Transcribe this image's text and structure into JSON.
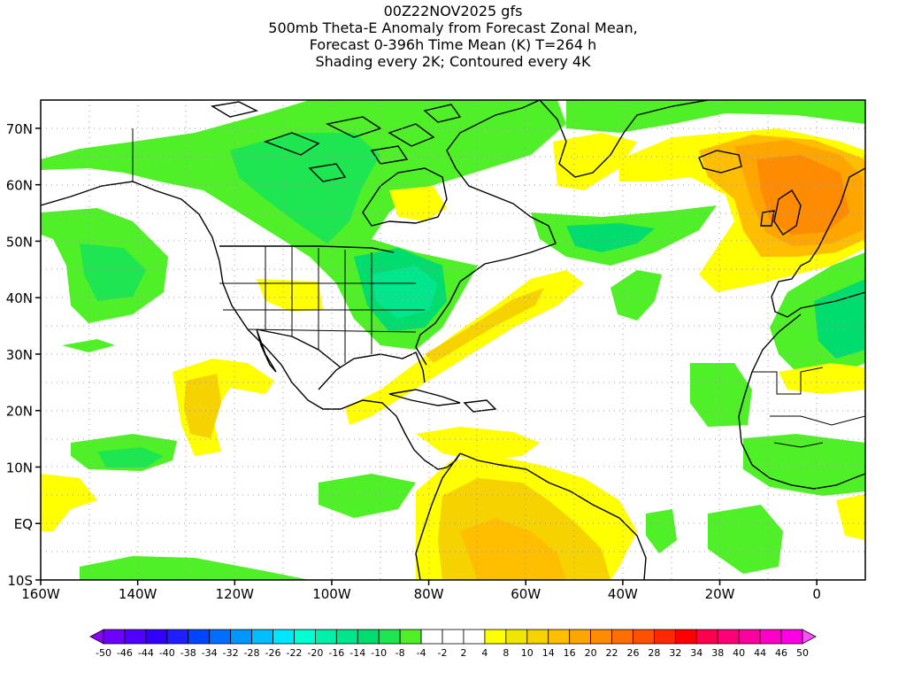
{
  "title": {
    "line1": "00Z22NOV2025 gfs",
    "line2": "500mb Theta-E Anomaly from Forecast Zonal Mean,",
    "line3": "Forecast 0-396h Time Mean (K) T=264 h",
    "line4": "Shading every 2K; Contoured every 4K"
  },
  "map": {
    "lon_labels": [
      "160W",
      "140W",
      "120W",
      "100W",
      "80W",
      "60W",
      "40W",
      "20W",
      "0"
    ],
    "lat_labels": [
      "70N",
      "60N",
      "50N",
      "40N",
      "30N",
      "20N",
      "10N",
      "EQ",
      "10S"
    ],
    "lon_range": [
      -160,
      10
    ],
    "lat_range": [
      -10,
      75
    ],
    "grid": "dotted"
  },
  "colorbar": {
    "labels": [
      "-50",
      "-46",
      "-44",
      "-40",
      "-38",
      "-34",
      "-32",
      "-28",
      "-26",
      "-22",
      "-20",
      "-16",
      "-14",
      "-10",
      "-8",
      "-4",
      "-2",
      "2",
      "4",
      "8",
      "10",
      "14",
      "16",
      "20",
      "22",
      "26",
      "28",
      "32",
      "34",
      "38",
      "40",
      "44",
      "46",
      "50"
    ],
    "colors": [
      "#8c00ff",
      "#6e00ff",
      "#5000ff",
      "#3200ff",
      "#1e1eff",
      "#0046ff",
      "#006eff",
      "#0096ff",
      "#00beff",
      "#00e6ff",
      "#00ffd2",
      "#00f0aa",
      "#00e68c",
      "#00dc6e",
      "#1ee650",
      "#50f028",
      "#ffffff",
      "#ffffff",
      "#ffffff",
      "#ffff00",
      "#f0e600",
      "#f5d200",
      "#ffbe00",
      "#ffa500",
      "#ff8c00",
      "#ff6e00",
      "#ff5000",
      "#ff2800",
      "#ff0000",
      "#ff0050",
      "#ff0078",
      "#ff00a0",
      "#ff00c8",
      "#ff00e6",
      "#ff50ff"
    ]
  }
}
